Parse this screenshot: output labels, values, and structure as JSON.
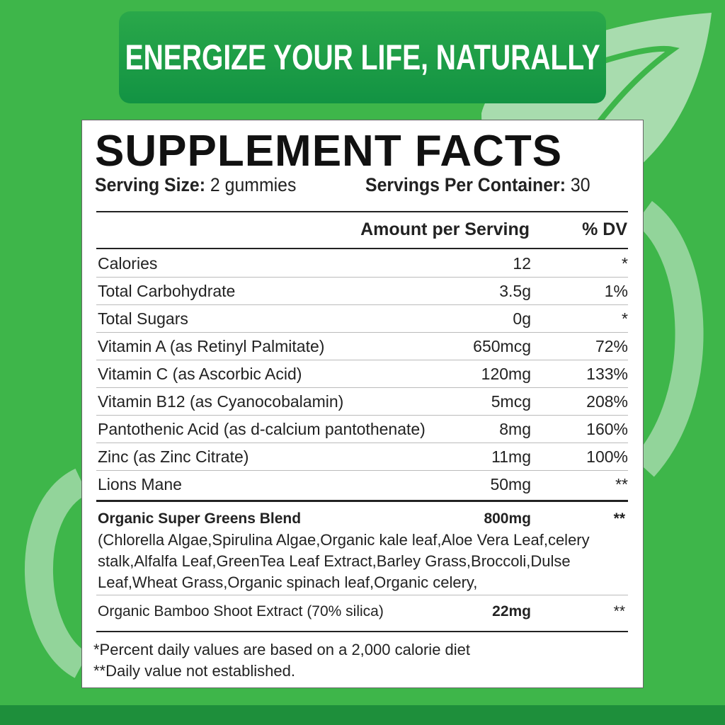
{
  "banner": {
    "text": "ENERGIZE YOUR LIFE, NATURALLY"
  },
  "colors": {
    "background": "#3eb64a",
    "banner": "#1f9e46",
    "bottom_strip": "#1e8f3b",
    "leaf": "#a8dcae"
  },
  "facts": {
    "title": "SUPPLEMENT FACTS",
    "serving_size_label": "Serving Size:",
    "serving_size_value": "2 gummies",
    "servings_label": "Servings Per Container:",
    "servings_value": "30",
    "col_amount": "Amount per Serving",
    "col_dv": "% DV",
    "rows": [
      {
        "name": "Calories",
        "amount": "12",
        "dv": "*"
      },
      {
        "name": "Total Carbohydrate",
        "amount": "3.5g",
        "dv": "1%"
      },
      {
        "name": "Total Sugars",
        "amount": "0g",
        "dv": "*"
      },
      {
        "name": "Vitamin A (as Retinyl Palmitate)",
        "amount": "650mcg",
        "dv": "72%"
      },
      {
        "name": "Vitamin C (as Ascorbic Acid)",
        "amount": "120mg",
        "dv": "133%"
      },
      {
        "name": "Vitamin B12 (as Cyanocobalamin)",
        "amount": "5mcg",
        "dv": "208%"
      },
      {
        "name": "Pantothenic Acid (as d-calcium pantothenate)",
        "amount": "8mg",
        "dv": "160%"
      },
      {
        "name": "Zinc (as Zinc Citrate)",
        "amount": "11mg",
        "dv": "100%"
      },
      {
        "name": "Lions Mane",
        "amount": "50mg",
        "dv": "**"
      }
    ],
    "blend": {
      "name": "Organic Super Greens Blend",
      "amount": "800mg",
      "dv": "**",
      "ingredients": "(Chlorella Algae,Spirulina Algae,Organic kale leaf,Aloe Vera Leaf,celery stalk,Alfalfa Leaf,GreenTea Leaf  Extract,Barley Grass,Broccoli,Dulse Leaf,Wheat Grass,Organic spinach leaf,Organic celery,"
    },
    "bamboo": {
      "name": "Organic Bamboo Shoot Extract (70% silica)",
      "amount": "22mg",
      "dv": "**"
    },
    "footnote1": "*Percent daily values are based on a 2,000 calorie diet",
    "footnote2": "**Daily value not established."
  }
}
